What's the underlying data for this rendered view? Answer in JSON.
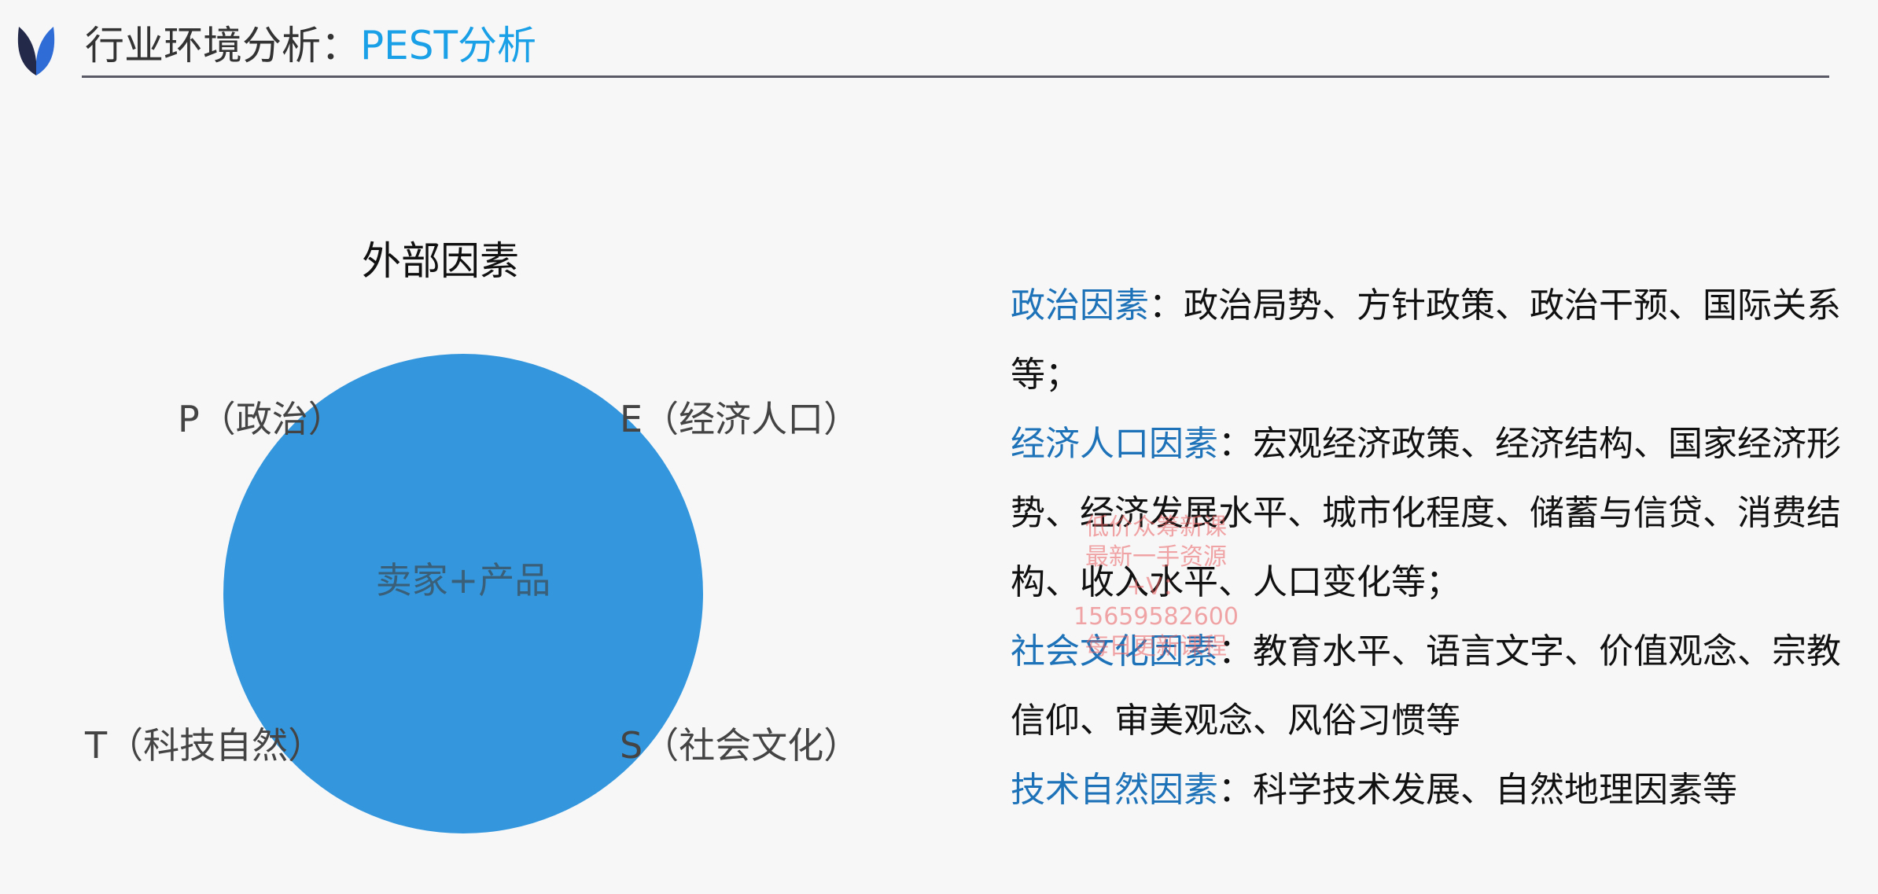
{
  "header": {
    "title_main": "行业环境分析：",
    "title_accent": "PEST分析"
  },
  "diagram": {
    "external_label": "外部因素",
    "center_label": "卖家+产品",
    "factor_p": "P（政治）",
    "factor_e": "E（经济人口）",
    "factor_t": "T（科技自然）",
    "factor_s": "S（社会文化）"
  },
  "factors": [
    {
      "heading": "政治因素",
      "separator": "：",
      "body": "政治局势、方针政策、政治干预、国际关系等；"
    },
    {
      "heading": "经济人口因素",
      "separator": "：",
      "body": "宏观经济政策、经济结构、国家经济形势、经济发展水平、城市化程度、储蓄与信贷、消费结构、收入水平、人口变化等；"
    },
    {
      "heading": "社会文化因素",
      "separator": "：",
      "body": "教育水平、语言文字、价值观念、宗教信仰、审美观念、风俗习惯等"
    },
    {
      "heading": "技术自然因素",
      "separator": "：",
      "body": "科学技术发展、自然地理因素等"
    }
  ],
  "watermark": {
    "line1": "低价众筹新课",
    "line2": "最新一手资源",
    "line3": "+V：15659582600",
    "line4": "每日更新课程"
  },
  "colors": {
    "accent": "#1aa0e6",
    "heading": "#1e73b8",
    "circle": "#3497dd",
    "logo_dark": "#232948",
    "logo_blue": "#2f6cd6"
  },
  "icons": {
    "logo": "leaf-logo-icon"
  }
}
